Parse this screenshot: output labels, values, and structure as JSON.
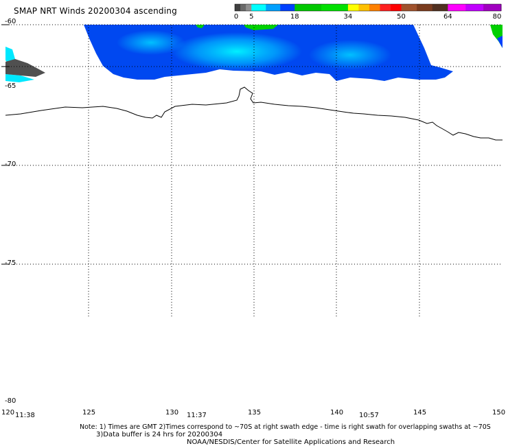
{
  "title": "SMAP NRT Winds 20200304 ascending",
  "colorbar": {
    "ticks": [
      "0",
      "5",
      "18",
      "34",
      "50",
      "64",
      "80"
    ],
    "segments": [
      {
        "from": 0,
        "to": 5,
        "colors": [
          "#404040",
          "#6a6a6a",
          "#909090"
        ]
      },
      {
        "from": 5,
        "to": 18,
        "colors": [
          "#00ffff",
          "#00a0ff",
          "#0040ff"
        ]
      },
      {
        "from": 18,
        "to": 34,
        "colors": [
          "#00c800",
          "#00e000"
        ]
      },
      {
        "from": 34,
        "to": 50,
        "colors": [
          "#ffff00",
          "#ffc000",
          "#ff8000",
          "#ff2020",
          "#ff0000"
        ]
      },
      {
        "from": 50,
        "to": 64,
        "colors": [
          "#a0522d",
          "#7a3b1e",
          "#503020"
        ]
      },
      {
        "from": 64,
        "to": 80,
        "colors": [
          "#ff00ff",
          "#c000ff",
          "#a000c0"
        ]
      }
    ]
  },
  "axes": {
    "lat_labels": [
      "-60",
      "-65",
      "-70",
      "-75",
      "-80"
    ],
    "lon_labels": [
      "120",
      "125",
      "130",
      "135",
      "140",
      "145",
      "150"
    ],
    "time_labels": [
      {
        "text": "11:38",
        "lon": 121.0
      },
      {
        "text": "11:37",
        "lon": 131.4
      },
      {
        "text": "10:57",
        "lon": 141.8
      }
    ]
  },
  "notes": {
    "line1": "Note: 1) Times are GMT 2)Times correspond to ~70S at right swath edge - time is right swath for overlapping swaths at ~70S",
    "line2": "3)Data buffer is 24 hrs for 20200304",
    "line3": "NOAA/NESDIS/Center for Satellite Applications and Research"
  },
  "colors": {
    "wind_low": "#00ffff",
    "wind_mid": "#0050ff",
    "wind_high": "#00d000",
    "no_data": "#505050",
    "coastline": "#000000"
  }
}
